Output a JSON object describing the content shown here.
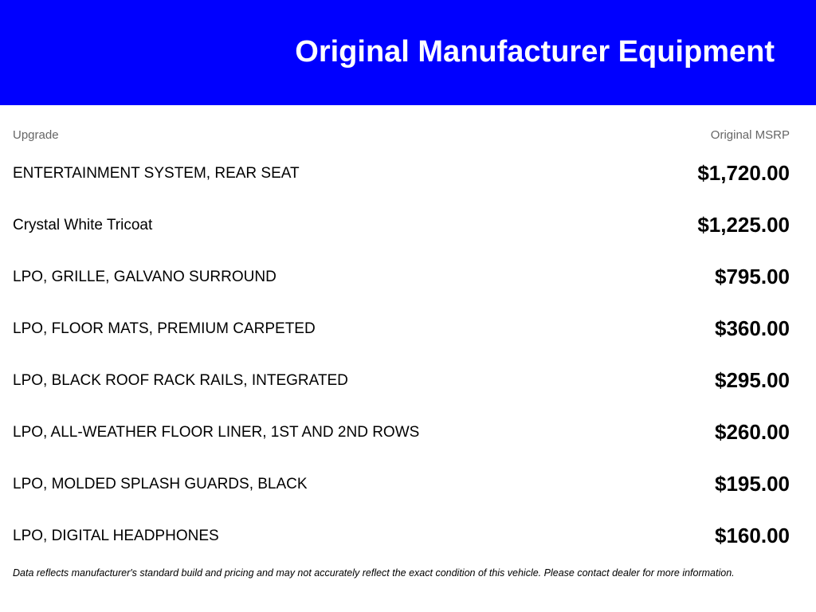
{
  "title": "Original Manufacturer Equipment",
  "columns": {
    "upgrade": "Upgrade",
    "msrp": "Original MSRP"
  },
  "items": [
    {
      "name": "ENTERTAINMENT SYSTEM, REAR SEAT",
      "price": "$1,720.00"
    },
    {
      "name": "Crystal White Tricoat",
      "price": "$1,225.00"
    },
    {
      "name": "LPO, GRILLE, GALVANO SURROUND",
      "price": "$795.00"
    },
    {
      "name": "LPO, FLOOR MATS, PREMIUM CARPETED",
      "price": "$360.00"
    },
    {
      "name": "LPO, BLACK ROOF RACK RAILS, INTEGRATED",
      "price": "$295.00"
    },
    {
      "name": "LPO, ALL-WEATHER FLOOR LINER, 1ST AND 2ND ROWS",
      "price": "$260.00"
    },
    {
      "name": "LPO, MOLDED SPLASH GUARDS, BLACK",
      "price": "$195.00"
    },
    {
      "name": "LPO, DIGITAL HEADPHONES",
      "price": "$160.00"
    }
  ],
  "disclaimer": "Data reflects manufacturer's standard build and pricing and may not accurately reflect the exact condition of this vehicle. Please contact dealer for more information.",
  "colors": {
    "header_bg": "#0000ff"
  }
}
